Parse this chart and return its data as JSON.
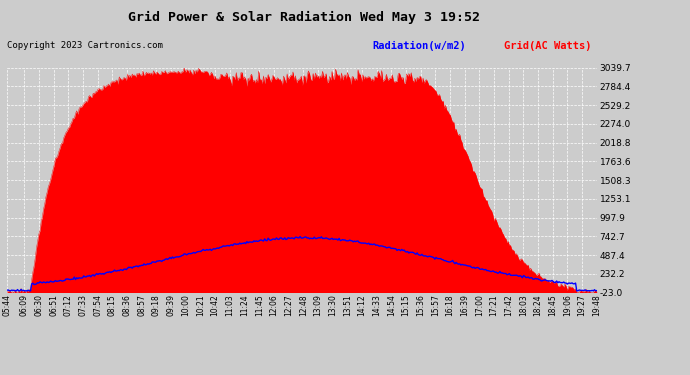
{
  "title": "Grid Power & Solar Radiation Wed May 3 19:52",
  "copyright": "Copyright 2023 Cartronics.com",
  "legend_radiation": "Radiation(w/m2)",
  "legend_grid": "Grid(AC Watts)",
  "background_color": "#cccccc",
  "plot_bg_color": "#cccccc",
  "grid_color": "white",
  "radiation_color": "#0000ff",
  "grid_power_color": "#ff0000",
  "grid_power_fill": "#ff0000",
  "yticks": [
    3039.7,
    2784.4,
    2529.2,
    2274.0,
    2018.8,
    1763.6,
    1508.3,
    1253.1,
    997.9,
    742.7,
    487.4,
    232.2,
    -23.0
  ],
  "ylim": [
    -23.0,
    3039.7
  ],
  "x_labels": [
    "05:44",
    "06:09",
    "06:30",
    "06:51",
    "07:12",
    "07:33",
    "07:54",
    "08:15",
    "08:36",
    "08:57",
    "09:18",
    "09:39",
    "10:00",
    "10:21",
    "10:42",
    "11:03",
    "11:24",
    "11:45",
    "12:06",
    "12:27",
    "12:48",
    "13:09",
    "13:30",
    "13:51",
    "14:12",
    "14:33",
    "14:54",
    "15:15",
    "15:36",
    "15:57",
    "16:18",
    "16:39",
    "17:00",
    "17:21",
    "17:42",
    "18:03",
    "18:24",
    "18:45",
    "19:06",
    "19:27",
    "19:48"
  ]
}
